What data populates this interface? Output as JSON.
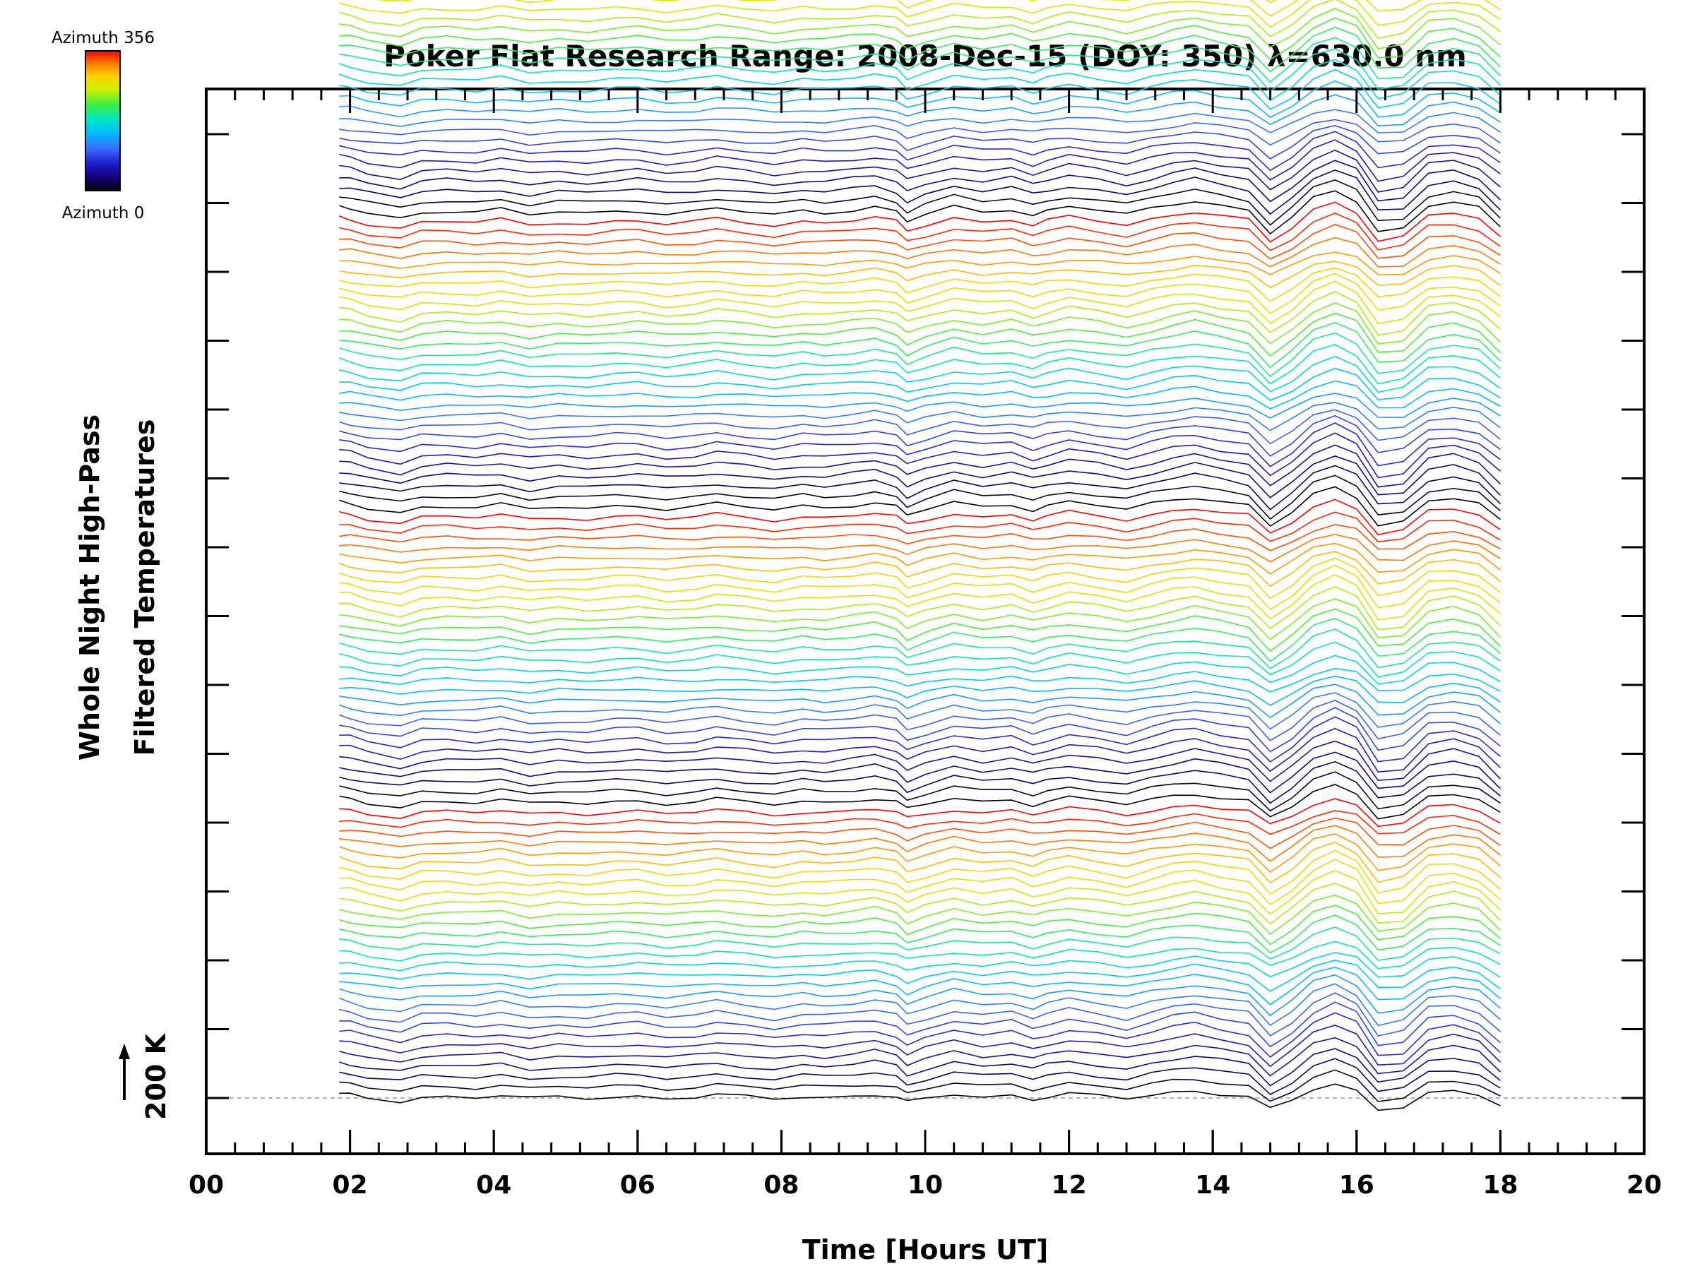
{
  "chart_data": {
    "type": "line",
    "title": "Poker Flat Research Range: 2008-Dec-15 (DOY: 350) λ=630.0 nm",
    "xlabel": "Time [Hours UT]",
    "ylabel_lines": [
      "Whole Night High-Pass",
      "Filtered Temperatures"
    ],
    "scale_label": "200 K",
    "colorbar": {
      "top_label": "Azimuth 356",
      "bottom_label": "Azimuth 0"
    },
    "xlim": [
      0,
      20
    ],
    "x_ticks": [
      "00",
      "02",
      "04",
      "06",
      "08",
      "10",
      "12",
      "14",
      "16",
      "18",
      "20"
    ],
    "x_tick_values": [
      0,
      2,
      4,
      6,
      8,
      10,
      12,
      14,
      16,
      18,
      20
    ],
    "x_minor_step": 0.4,
    "grid": false,
    "legend": "colorbar top-left",
    "series_count": 132,
    "series_spacing_K": 30,
    "azimuth_range": [
      0,
      356
    ],
    "x": [
      1.85,
      2.0,
      2.25,
      2.7,
      3.0,
      3.35,
      3.75,
      4.1,
      4.5,
      4.9,
      5.3,
      5.7,
      6.0,
      6.4,
      6.8,
      7.1,
      7.5,
      7.9,
      8.3,
      8.6,
      9.0,
      9.3,
      9.6,
      9.75,
      10.0,
      10.4,
      10.8,
      11.2,
      11.5,
      11.7,
      12.0,
      12.4,
      12.8,
      13.15,
      13.45,
      13.75,
      14.1,
      14.5,
      14.8,
      15.1,
      15.4,
      15.7,
      16.0,
      16.3,
      16.65,
      17.0,
      17.35,
      17.7,
      18.0
    ],
    "y_reference_trace_K": [
      20,
      15,
      0,
      -15,
      5,
      8,
      3,
      12,
      -5,
      5,
      0,
      8,
      10,
      -2,
      5,
      15,
      5,
      -5,
      8,
      3,
      12,
      20,
      5,
      -25,
      -5,
      20,
      5,
      15,
      -5,
      8,
      22,
      10,
      -5,
      15,
      30,
      40,
      25,
      10,
      -60,
      -15,
      45,
      70,
      40,
      -55,
      -45,
      25,
      35,
      15,
      -45
    ],
    "azimuth_color_stops": [
      "#000000",
      "#1a0080",
      "#2020d0",
      "#3c6cff",
      "#00c0ff",
      "#00e8c0",
      "#40f040",
      "#c8f000",
      "#ffd000",
      "#ff7000",
      "#ff0000"
    ]
  }
}
